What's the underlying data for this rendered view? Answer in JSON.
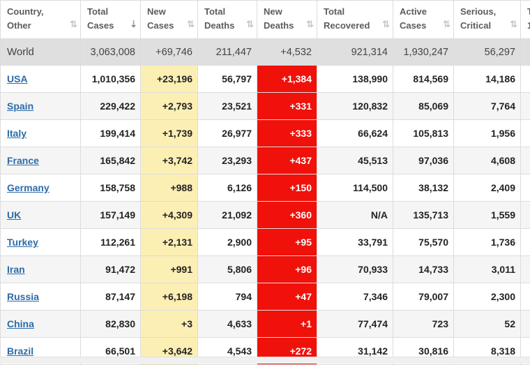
{
  "headers": [
    {
      "label": "Country,\nOther",
      "sort": "⇅",
      "active": false
    },
    {
      "label": "Total\nCases",
      "sort": "⇣",
      "active": true
    },
    {
      "label": "New\nCases",
      "sort": "⇅",
      "active": false
    },
    {
      "label": "Total\nDeaths",
      "sort": "⇅",
      "active": false
    },
    {
      "label": "New\nDeaths",
      "sort": "⇅",
      "active": false
    },
    {
      "label": "Total\nRecovered",
      "sort": "⇅",
      "active": false
    },
    {
      "label": "Active\nCases",
      "sort": "⇅",
      "active": false
    },
    {
      "label": "Serious,\nCritical",
      "sort": "⇅",
      "active": false
    },
    {
      "label": "T\n1",
      "sort": "",
      "active": false
    }
  ],
  "world": {
    "country": "World",
    "cells": [
      "3,063,008",
      "+69,746",
      "211,447",
      "+4,532",
      "921,314",
      "1,930,247",
      "56,297",
      ""
    ]
  },
  "rows": [
    {
      "country": "USA",
      "cells": [
        "1,010,356",
        "+23,196",
        "56,797",
        "+1,384",
        "138,990",
        "814,569",
        "14,186",
        ""
      ]
    },
    {
      "country": "Spain",
      "cells": [
        "229,422",
        "+2,793",
        "23,521",
        "+331",
        "120,832",
        "85,069",
        "7,764",
        ""
      ]
    },
    {
      "country": "Italy",
      "cells": [
        "199,414",
        "+1,739",
        "26,977",
        "+333",
        "66,624",
        "105,813",
        "1,956",
        ""
      ]
    },
    {
      "country": "France",
      "cells": [
        "165,842",
        "+3,742",
        "23,293",
        "+437",
        "45,513",
        "97,036",
        "4,608",
        ""
      ]
    },
    {
      "country": "Germany",
      "cells": [
        "158,758",
        "+988",
        "6,126",
        "+150",
        "114,500",
        "38,132",
        "2,409",
        ""
      ]
    },
    {
      "country": "UK",
      "cells": [
        "157,149",
        "+4,309",
        "21,092",
        "+360",
        "N/A",
        "135,713",
        "1,559",
        ""
      ]
    },
    {
      "country": "Turkey",
      "cells": [
        "112,261",
        "+2,131",
        "2,900",
        "+95",
        "33,791",
        "75,570",
        "1,736",
        ""
      ]
    },
    {
      "country": "Iran",
      "cells": [
        "91,472",
        "+991",
        "5,806",
        "+96",
        "70,933",
        "14,733",
        "3,011",
        ""
      ]
    },
    {
      "country": "Russia",
      "cells": [
        "87,147",
        "+6,198",
        "794",
        "+47",
        "7,346",
        "79,007",
        "2,300",
        ""
      ]
    },
    {
      "country": "China",
      "cells": [
        "82,830",
        "+3",
        "4,633",
        "+1",
        "77,474",
        "723",
        "52",
        ""
      ]
    },
    {
      "country": "Brazil",
      "cells": [
        "66,501",
        "+3,642",
        "4,543",
        "+272",
        "31,142",
        "30,816",
        "8,318",
        ""
      ]
    }
  ],
  "colors": {
    "new_cases_bg": "#fcefb4",
    "new_deaths_bg": "#f0110b",
    "world_bg": "#dfdfdf",
    "link": "#2c6ba8"
  }
}
